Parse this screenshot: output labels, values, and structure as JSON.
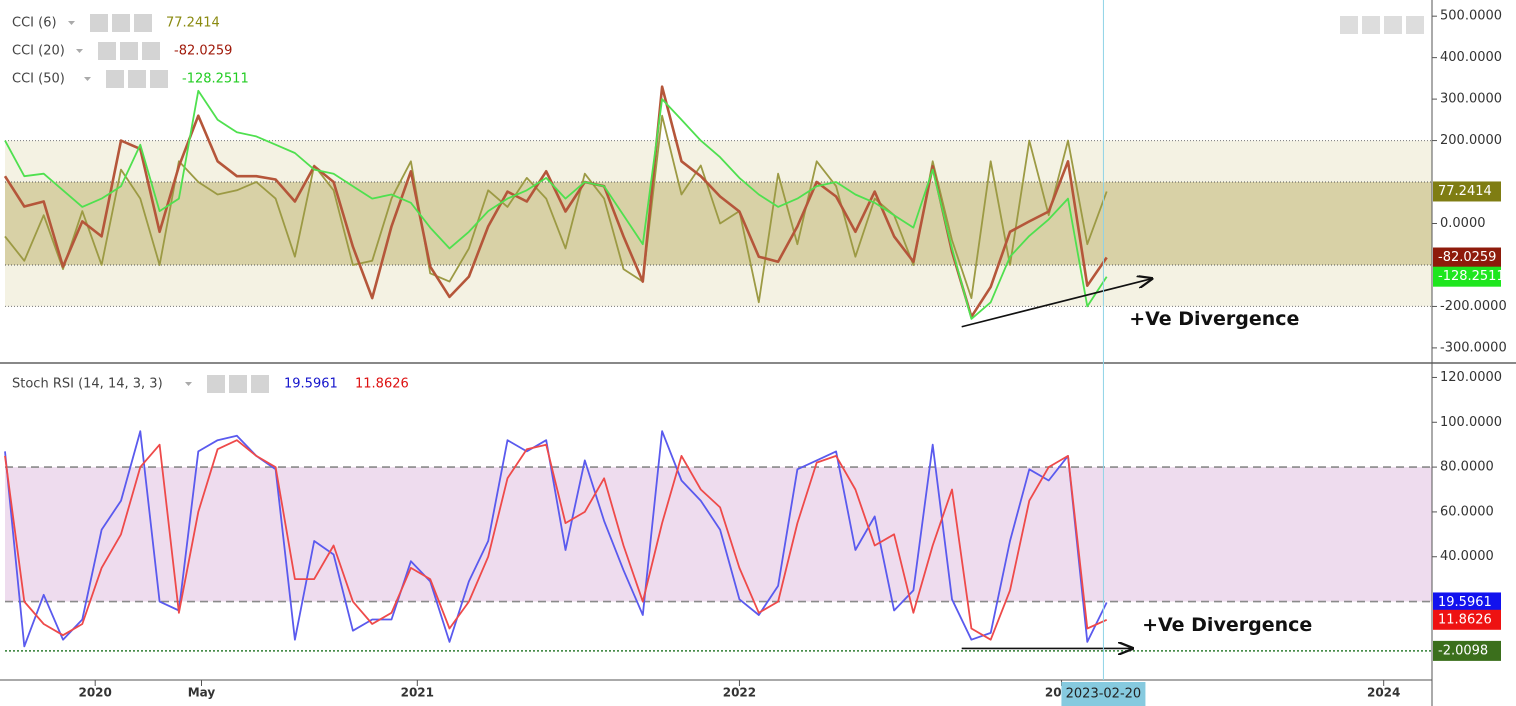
{
  "chart_data": [
    {
      "type": "line",
      "x": [
        2019.72,
        2019.78,
        2019.84,
        2019.9,
        2019.96,
        2020.02,
        2020.08,
        2020.14,
        2020.2,
        2020.26,
        2020.32,
        2020.38,
        2020.44,
        2020.5,
        2020.56,
        2020.62,
        2020.68,
        2020.74,
        2020.8,
        2020.86,
        2020.92,
        2020.98,
        2021.04,
        2021.1,
        2021.16,
        2021.22,
        2021.28,
        2021.34,
        2021.4,
        2021.46,
        2021.52,
        2021.58,
        2021.64,
        2021.7,
        2021.76,
        2021.82,
        2021.88,
        2021.94,
        2022.0,
        2022.06,
        2022.12,
        2022.18,
        2022.24,
        2022.3,
        2022.36,
        2022.42,
        2022.48,
        2022.54,
        2022.6,
        2022.66,
        2022.72,
        2022.78,
        2022.84,
        2022.9,
        2022.96,
        2023.02,
        2023.08,
        2023.14
      ],
      "xlim": [
        2019.72,
        2024.15
      ],
      "ylim": [
        -334,
        539
      ],
      "yticks": [
        {
          "value": 500,
          "label": "500.0000"
        },
        {
          "value": 400,
          "label": "400.0000"
        },
        {
          "value": 300,
          "label": "300.0000"
        },
        {
          "value": 200,
          "label": "200.0000"
        },
        {
          "value": 0,
          "label": "0.0000"
        },
        {
          "value": -200,
          "label": "-200.0000"
        },
        {
          "value": -300,
          "label": "-300.0000"
        }
      ],
      "bands": [
        {
          "from": -200,
          "to": 200,
          "color": "#f4f2e3",
          "line_color": "#777"
        },
        {
          "from": -100,
          "to": 100,
          "color": "#d8d1a6",
          "line_color": "#555"
        }
      ],
      "series": [
        {
          "name": "CCI (6)",
          "color": "#9c9a44",
          "label_color": "#8a8a10",
          "tag_color": "#7f7d13",
          "values": [
            -31,
            -90,
            20,
            -110,
            30,
            -100,
            130,
            60,
            -100,
            150,
            100,
            70,
            80,
            100,
            60,
            -80,
            140,
            80,
            -100,
            -90,
            60,
            150,
            -120,
            -140,
            -60,
            80,
            40,
            110,
            60,
            -60,
            120,
            60,
            -110,
            -140,
            260,
            70,
            140,
            0,
            30,
            -190,
            120,
            -50,
            150,
            90,
            -80,
            60,
            20,
            -100,
            150,
            -40,
            -180,
            150,
            -100,
            200,
            20,
            200,
            -50,
            77.2414
          ]
        },
        {
          "name": "CCI (20)",
          "color": "#b5563a",
          "label_color": "#a01a0a",
          "tag_color": "#8e1b0b",
          "values": [
            114,
            41,
            53,
            -104,
            5,
            -31,
            200,
            180,
            -20,
            138,
            260,
            150,
            114,
            114,
            106,
            53,
            138,
            100,
            -56,
            -180,
            -7,
            126,
            -104,
            -177,
            -128,
            -7,
            77,
            53,
            126,
            29,
            100,
            90,
            -31,
            -140,
            330,
            150,
            114,
            65,
            29,
            -80,
            -92,
            -7,
            100,
            65,
            -20,
            77,
            -31,
            -92,
            138,
            -68,
            -225,
            -153,
            -20,
            5,
            29,
            150,
            -150,
            -82.0259
          ]
        },
        {
          "name": "CCI (50)",
          "color": "#4fe04f",
          "label_color": "#22cc22",
          "tag_color": "#1ee61e",
          "values": [
            200,
            114,
            120,
            80,
            40,
            60,
            90,
            190,
            30,
            60,
            320,
            250,
            220,
            210,
            190,
            170,
            130,
            120,
            90,
            60,
            70,
            50,
            -10,
            -60,
            -20,
            30,
            60,
            80,
            110,
            60,
            100,
            90,
            20,
            -50,
            300,
            250,
            200,
            160,
            110,
            70,
            40,
            60,
            90,
            100,
            70,
            50,
            20,
            -10,
            130,
            -60,
            -230,
            -190,
            -80,
            -30,
            10,
            60,
            -200,
            -128.2511
          ]
        }
      ],
      "annotations": [
        {
          "text": "+Ve Divergence",
          "x": 2023.21,
          "y": -232,
          "arrow": [
            2022.69,
            -249,
            2023.28,
            -133
          ]
        }
      ]
    },
    {
      "type": "line",
      "title": "Stoch RSI (14, 14, 3, 3)",
      "x": [
        2019.72,
        2019.78,
        2019.84,
        2019.9,
        2019.96,
        2020.02,
        2020.08,
        2020.14,
        2020.2,
        2020.26,
        2020.32,
        2020.38,
        2020.44,
        2020.5,
        2020.56,
        2020.62,
        2020.68,
        2020.74,
        2020.8,
        2020.86,
        2020.92,
        2020.98,
        2021.04,
        2021.1,
        2021.16,
        2021.22,
        2021.28,
        2021.34,
        2021.4,
        2021.46,
        2021.52,
        2021.58,
        2021.64,
        2021.7,
        2021.76,
        2021.82,
        2021.88,
        2021.94,
        2022.0,
        2022.06,
        2022.12,
        2022.18,
        2022.24,
        2022.3,
        2022.36,
        2022.42,
        2022.48,
        2022.54,
        2022.6,
        2022.66,
        2022.72,
        2022.78,
        2022.84,
        2022.9,
        2022.96,
        2023.02,
        2023.08,
        2023.14
      ],
      "xlim": [
        2019.72,
        2024.15
      ],
      "xticks": [
        {
          "value": 2020,
          "label": "2020"
        },
        {
          "value": 2020.33,
          "label": "May"
        },
        {
          "value": 2021,
          "label": "2021"
        },
        {
          "value": 2022,
          "label": "2022"
        },
        {
          "value": 2023,
          "label": "2023"
        },
        {
          "value": 2024,
          "label": "2024"
        }
      ],
      "ylim": [
        -15,
        126
      ],
      "yticks": [
        {
          "value": 120,
          "label": "120.0000"
        },
        {
          "value": 100,
          "label": "100.0000"
        },
        {
          "value": 80,
          "label": "80.0000"
        },
        {
          "value": 60,
          "label": "60.0000"
        },
        {
          "value": 40,
          "label": "40.0000"
        }
      ],
      "bands": [
        {
          "from": 20,
          "to": 80,
          "color": "#eedcee",
          "line_color": "#8a8a8a"
        }
      ],
      "hlines": [
        {
          "value": -2.0098,
          "color": "#2e7d32",
          "tag_color": "#3b6f1c"
        }
      ],
      "series": [
        {
          "color": "#5a5aee",
          "label_color": "#1515cc",
          "tag_color": "#1212ee",
          "values": [
            87,
            0,
            23,
            3,
            12,
            52,
            65,
            96,
            20,
            16,
            87,
            92,
            94,
            85,
            79,
            3,
            47,
            41,
            7,
            12,
            12,
            38,
            29,
            2,
            29,
            47,
            92,
            87,
            92,
            43,
            83,
            56,
            34,
            14,
            96,
            74,
            65,
            52,
            21,
            14,
            27,
            79,
            83,
            87,
            43,
            58,
            16,
            25,
            90,
            21,
            3,
            6,
            47,
            79,
            74,
            85,
            2,
            19.5961
          ]
        },
        {
          "color": "#ee4a4a",
          "label_color": "#dd1111",
          "tag_color": "#ee1212",
          "values": [
            85,
            20,
            10,
            5,
            10,
            35,
            50,
            80,
            90,
            15,
            60,
            88,
            92,
            85,
            80,
            30,
            30,
            45,
            20,
            10,
            15,
            35,
            30,
            8,
            20,
            40,
            75,
            88,
            90,
            55,
            60,
            75,
            45,
            20,
            55,
            85,
            70,
            62,
            35,
            15,
            20,
            55,
            82,
            85,
            70,
            45,
            50,
            15,
            45,
            70,
            8,
            3,
            25,
            65,
            80,
            85,
            8,
            11.8626
          ]
        }
      ],
      "annotations": [
        {
          "text": "+Ve Divergence",
          "x": 2023.25,
          "y": 9.4,
          "arrow": [
            2022.69,
            -0.9,
            2023.22,
            -0.9
          ]
        }
      ],
      "cursor": {
        "x": 2023.13,
        "label": "2023-02-20"
      }
    }
  ]
}
